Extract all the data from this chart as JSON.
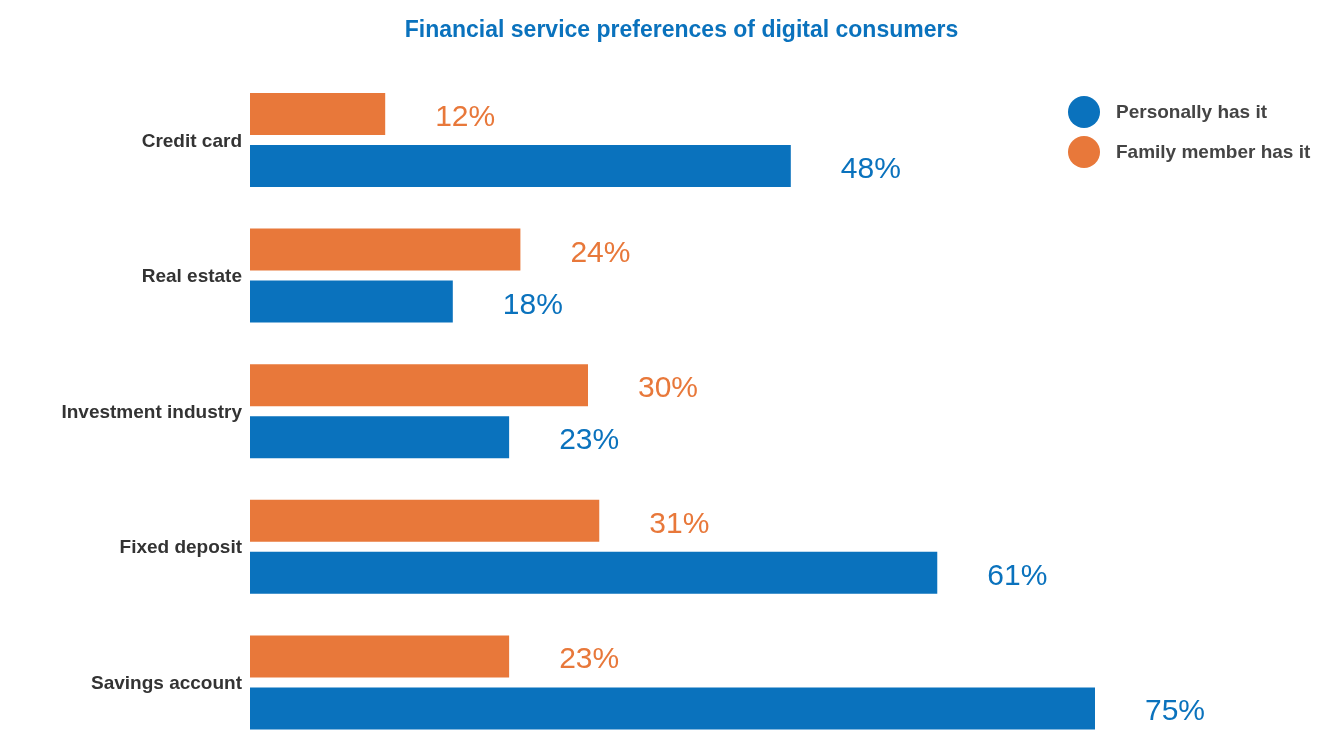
{
  "chart_data": {
    "type": "bar",
    "orientation": "horizontal",
    "title": "Financial service preferences of digital consumers",
    "categories": [
      "Credit card",
      "Real estate",
      "Investment industry",
      "Fixed deposit",
      "Savings account"
    ],
    "legend": "top right",
    "series": [
      {
        "name": "Family member has it",
        "color": "#e8783a",
        "values": [
          12,
          24,
          30,
          31,
          23
        ],
        "value_labels": [
          "12%",
          "24%",
          "30%",
          "31%",
          "23%"
        ]
      },
      {
        "name": "Personally has it",
        "color": "#0a72bd",
        "values": [
          48,
          18,
          23,
          61,
          75
        ],
        "value_labels": [
          "48%",
          "18%",
          "23%",
          "61%",
          "75%"
        ]
      }
    ]
  }
}
